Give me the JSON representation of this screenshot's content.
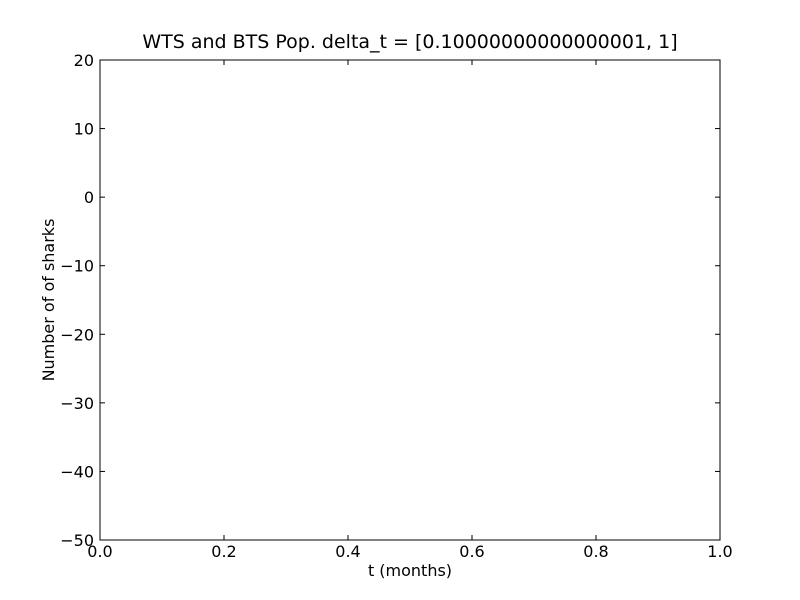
{
  "chart_data": {
    "type": "line",
    "title": "WTS and BTS Pop. delta_t = [0.10000000000000001, 1]",
    "xlabel": "t (months)",
    "ylabel": "Number of of sharks",
    "xlim": [
      0.0,
      1.0
    ],
    "ylim": [
      -50,
      20
    ],
    "x_ticks": [
      0.0,
      0.2,
      0.4,
      0.6,
      0.8,
      1.0
    ],
    "x_tick_labels": [
      "0.0",
      "0.2",
      "0.4",
      "0.6",
      "0.8",
      "1.0"
    ],
    "y_ticks": [
      20,
      10,
      0,
      -10,
      -20,
      -30,
      -40,
      -50
    ],
    "y_tick_labels": [
      "20",
      "10",
      "0",
      "−10",
      "−20",
      "−30",
      "−40",
      "−50"
    ],
    "series": [],
    "grid": false,
    "legend": "none"
  }
}
